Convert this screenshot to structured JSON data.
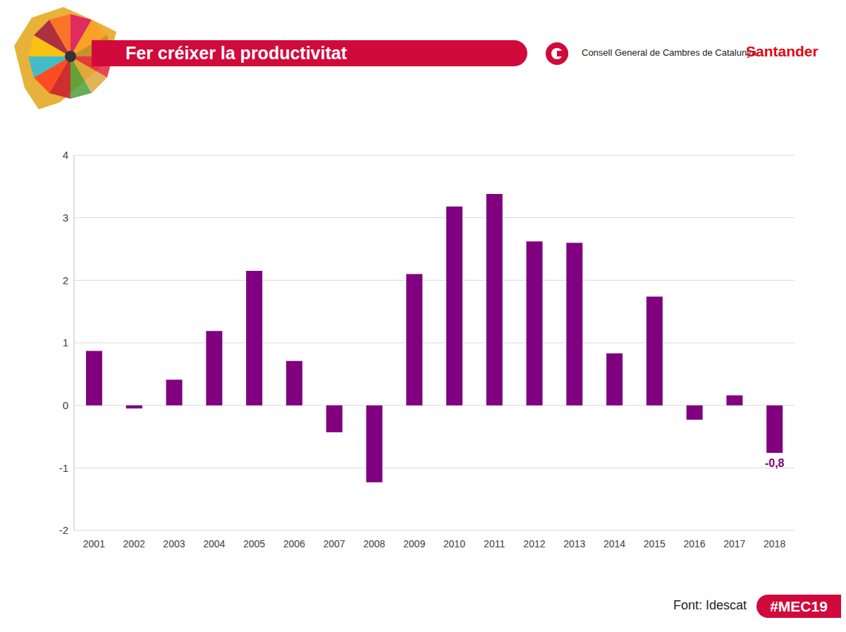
{
  "chart_data": {
    "type": "bar",
    "title": "Fer créixer la productivitat",
    "categories": [
      "2001",
      "2002",
      "2003",
      "2004",
      "2005",
      "2006",
      "2007",
      "2008",
      "2009",
      "2010",
      "2011",
      "2012",
      "2013",
      "2014",
      "2015",
      "2016",
      "2017",
      "2018"
    ],
    "values": [
      0.87,
      -0.05,
      0.41,
      1.19,
      2.15,
      0.71,
      -0.43,
      -1.23,
      2.1,
      3.18,
      3.38,
      2.62,
      2.6,
      0.83,
      1.74,
      -0.23,
      0.16,
      -0.76
    ],
    "color": "#800080",
    "ylim": [
      -2,
      4
    ],
    "yticks": [
      -2,
      -1,
      0,
      1,
      2,
      3,
      4
    ],
    "grid": true,
    "annotations": [
      {
        "category": "2018",
        "text": "-0,8"
      }
    ],
    "source": "Font: Idescat",
    "logos": [
      "Consell General de Cambres de Catalunya",
      "Santander"
    ],
    "hashtag": "#MEC19"
  }
}
